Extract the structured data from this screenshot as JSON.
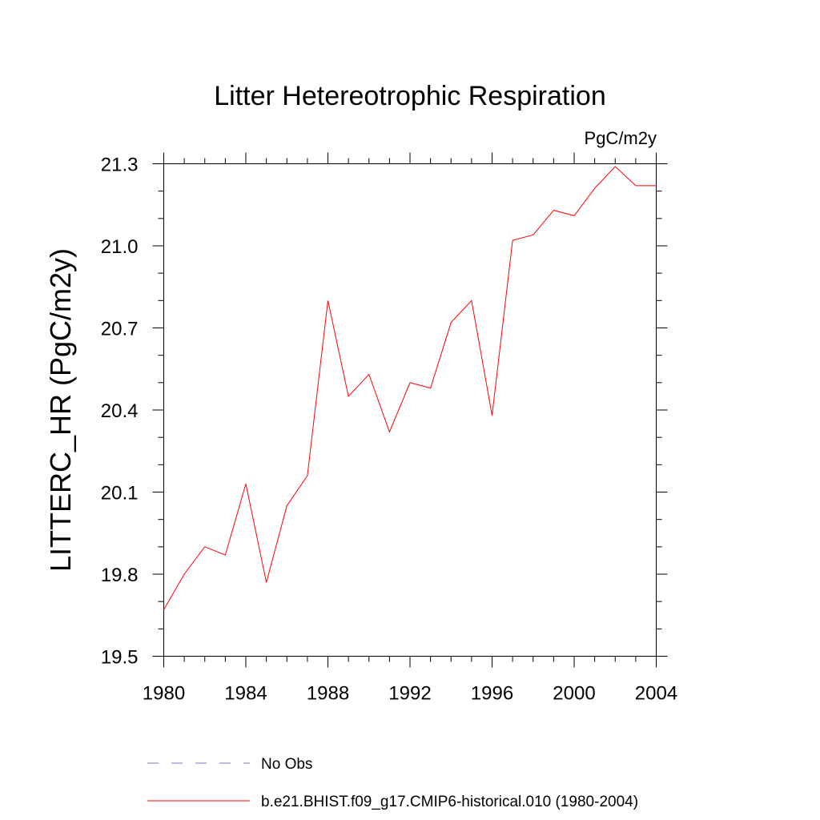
{
  "chart_data": {
    "type": "line",
    "title": "Litter Hetereotrophic Respiration",
    "units_label": "PgC/m2y",
    "xlabel": "",
    "ylabel": "LITTERC_HR  (PgC/m2y)",
    "xlim": [
      1980,
      2004
    ],
    "ylim": [
      19.5,
      21.3
    ],
    "x_ticks": [
      1980,
      1984,
      1988,
      1992,
      1996,
      2000,
      2004
    ],
    "x_tick_labels": [
      "1980",
      "1984",
      "1988",
      "1992",
      "1996",
      "2000",
      "2004"
    ],
    "y_ticks": [
      19.5,
      19.8,
      20.1,
      20.4,
      20.7,
      21.0,
      21.3
    ],
    "y_tick_labels": [
      "19.5",
      "19.8",
      "20.1",
      "20.4",
      "20.7",
      "21.0",
      "21.3"
    ],
    "grid": false,
    "legend_position": "bottom",
    "series": [
      {
        "name": "No Obs",
        "color": "#7777cc",
        "dash": "dashed",
        "x": [],
        "y": []
      },
      {
        "name": "b.e21.BHIST.f09_g17.CMIP6-historical.010 (1980-2004)",
        "color": "#ff0000",
        "dash": "solid",
        "x": [
          1980,
          1981,
          1982,
          1983,
          1984,
          1985,
          1986,
          1987,
          1988,
          1989,
          1990,
          1991,
          1992,
          1993,
          1994,
          1995,
          1996,
          1997,
          1998,
          1999,
          2000,
          2001,
          2002,
          2003,
          2004
        ],
        "y": [
          19.67,
          19.8,
          19.9,
          19.87,
          20.13,
          19.77,
          20.05,
          20.16,
          20.8,
          20.45,
          20.53,
          20.32,
          20.5,
          20.48,
          20.72,
          20.8,
          20.38,
          21.02,
          21.04,
          21.13,
          21.11,
          21.21,
          21.29,
          21.22,
          21.22
        ]
      }
    ]
  }
}
